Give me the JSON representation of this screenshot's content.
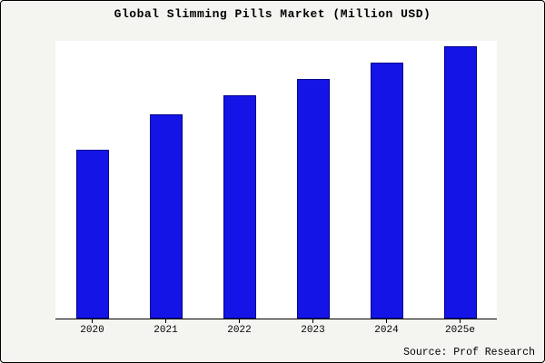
{
  "frame": {
    "title": "Global Slimming Pills Market (Million USD)",
    "source": "Source: Prof Research"
  },
  "chart_data": {
    "type": "bar",
    "title": "Global Slimming Pills Market (Million USD)",
    "categories": [
      "2020",
      "2021",
      "2022",
      "2023",
      "2024",
      "2025e"
    ],
    "values": [
      62,
      75,
      82,
      88,
      94,
      100
    ],
    "xlabel": "",
    "ylabel": "",
    "ylim": [
      0,
      100
    ],
    "y_axis_visible": false,
    "grid": false,
    "legend": false,
    "bar_color": "#1414e6",
    "bar_edge_color": "#00008b",
    "source": "Source: Prof Research"
  }
}
